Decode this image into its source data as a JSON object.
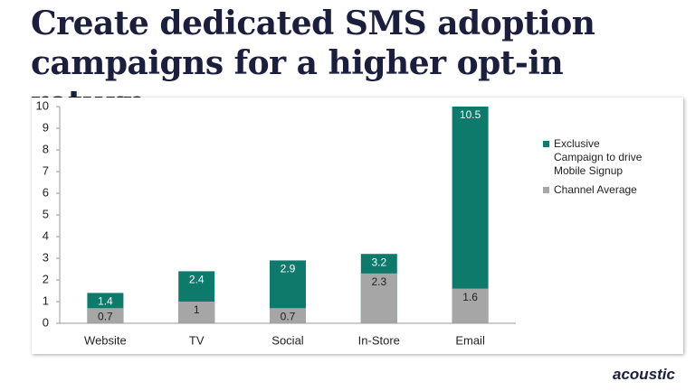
{
  "title": "Create dedicated SMS adoption campaigns for a higher opt-in return",
  "brand": "acoustic",
  "chart_data": {
    "type": "bar",
    "categories": [
      "Website",
      "TV",
      "Social",
      "In-Store",
      "Email"
    ],
    "series": [
      {
        "name": "Exclusive Campaign to drive Mobile Signup",
        "color": "#0e7a6b",
        "values": [
          1.4,
          2.4,
          2.9,
          3.2,
          10.5
        ]
      },
      {
        "name": "Channel Average",
        "color": "#a6a6a6",
        "values": [
          0.7,
          1,
          0.7,
          2.3,
          1.6
        ]
      }
    ],
    "ylim": [
      0,
      10
    ],
    "yticks": [
      0,
      1,
      2,
      3,
      4,
      5,
      6,
      7,
      8,
      9,
      10
    ],
    "legend": "right"
  }
}
